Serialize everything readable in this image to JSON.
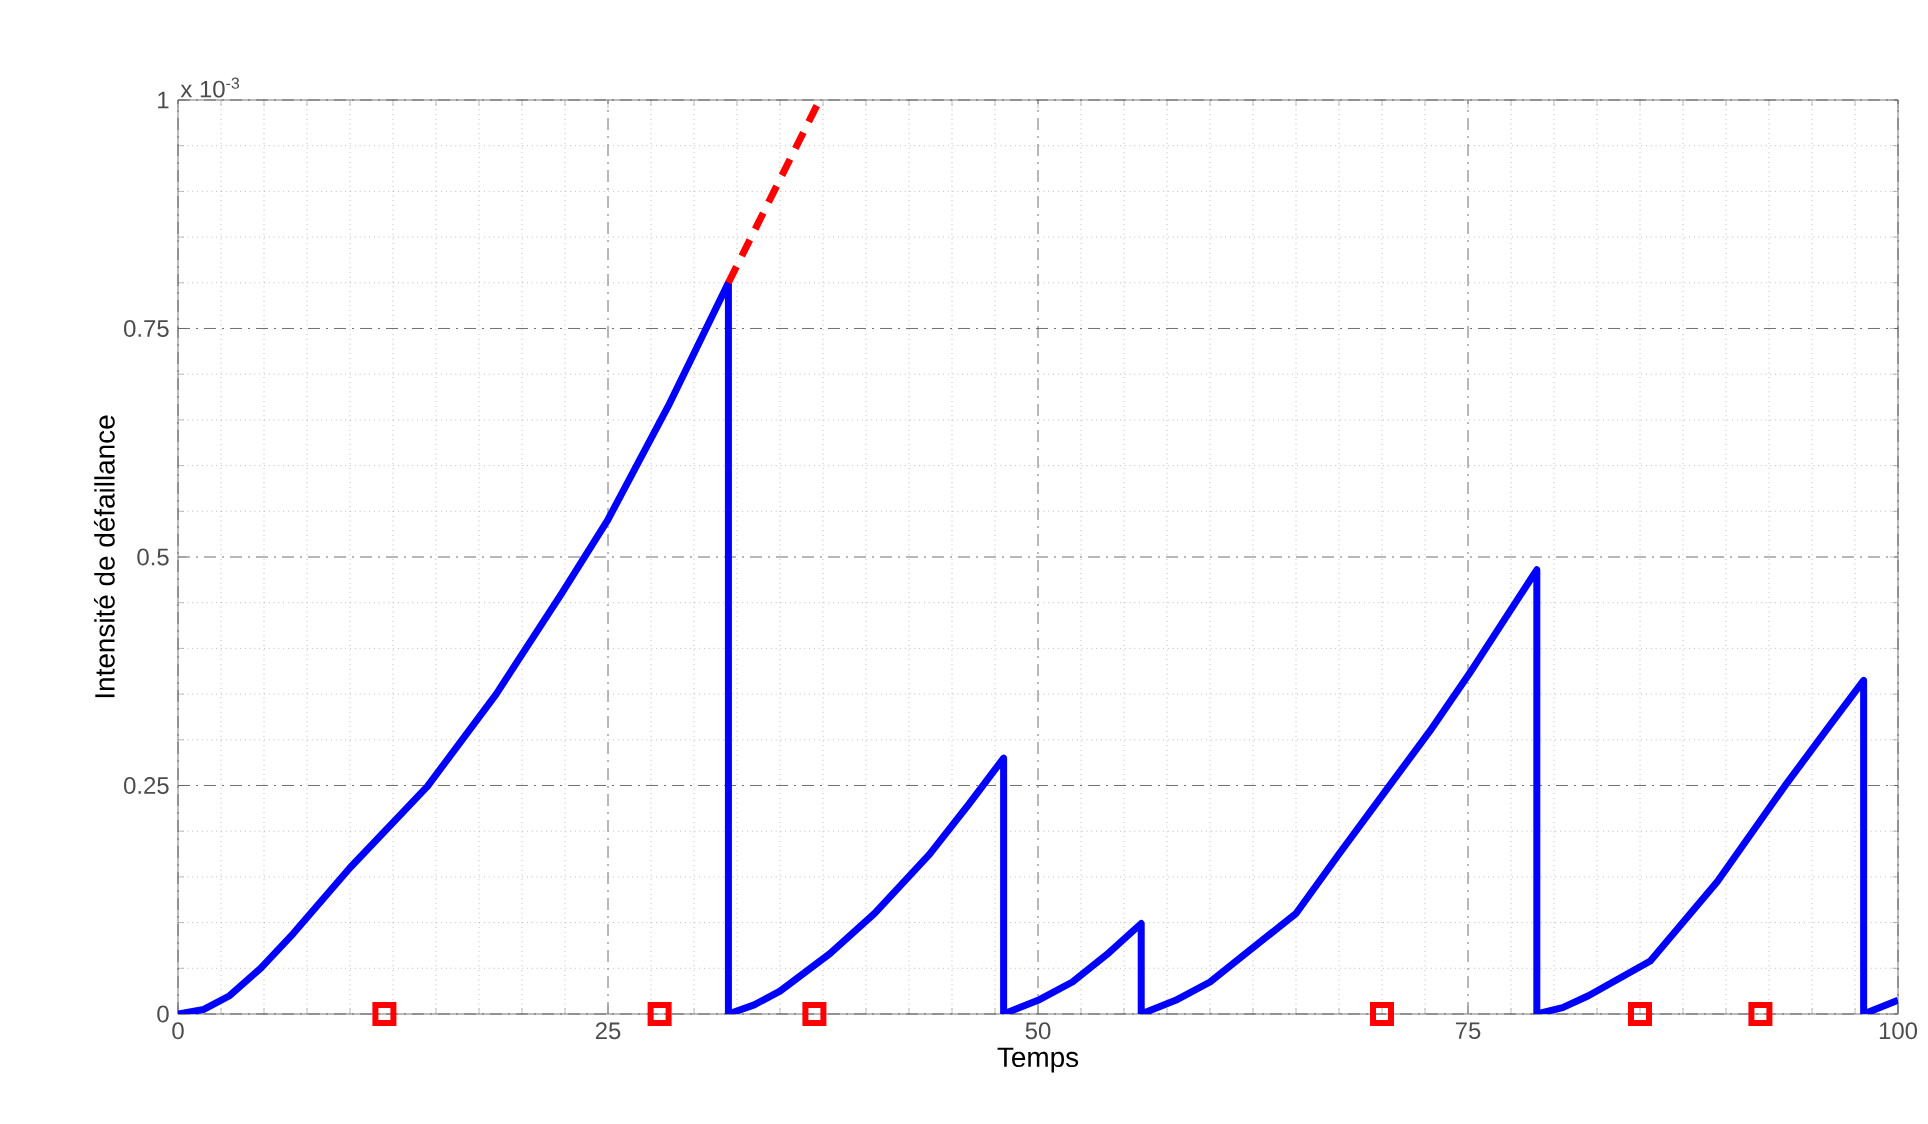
{
  "chart_data": {
    "type": "line",
    "xlabel": "Temps",
    "ylabel": "Intensité de défaillance",
    "annotations": [
      "x 10$^{-3}$"
    ],
    "xlim": [
      0,
      100
    ],
    "ylim": [
      0,
      1
    ],
    "xticks": [
      0,
      25,
      50,
      75,
      100
    ],
    "yticks": [
      0,
      0.25,
      0.5,
      0.75,
      1
    ],
    "grid": true,
    "series": [
      {
        "color": "#0000ff",
        "line_style": "solid",
        "marker": "none",
        "x": [
          0,
          1.5,
          3,
          4.8,
          6.7,
          10,
          14.5,
          18.5,
          22.3,
          25,
          28.5,
          32,
          32,
          33.5,
          35,
          37.9,
          40.5,
          43.7,
          46,
          48,
          48,
          50,
          52,
          54,
          56,
          56,
          58,
          60,
          62,
          65,
          67.5,
          70.4,
          72.8,
          75.1,
          79,
          79,
          80.5,
          82,
          85.6,
          89.5,
          93.4,
          96,
          98,
          98,
          100
        ],
        "values": [
          0,
          0.005,
          0.02,
          0.05,
          0.088,
          0.16,
          0.249,
          0.35,
          0.46,
          0.541,
          0.665,
          0.8,
          0,
          0.01,
          0.025,
          0.066,
          0.11,
          0.175,
          0.23,
          0.28,
          0,
          0.015,
          0.035,
          0.065,
          0.099,
          0,
          0.015,
          0.035,
          0.065,
          0.11,
          0.175,
          0.249,
          0.31,
          0.373,
          0.486,
          0,
          0.007,
          0.02,
          0.058,
          0.145,
          0.249,
          0.315,
          0.365,
          0,
          0.015
        ]
      },
      {
        "color": "#ff0000",
        "line_style": "dashed",
        "marker": "none",
        "x": [
          32,
          37.3
        ],
        "values": [
          0.8,
          1
        ]
      },
      {
        "type": "scatter",
        "color": "#ff0000",
        "marker": "square",
        "x": [
          12,
          28,
          37,
          70,
          85,
          92
        ],
        "values": [
          0,
          0,
          0,
          0,
          0,
          0
        ]
      }
    ]
  }
}
